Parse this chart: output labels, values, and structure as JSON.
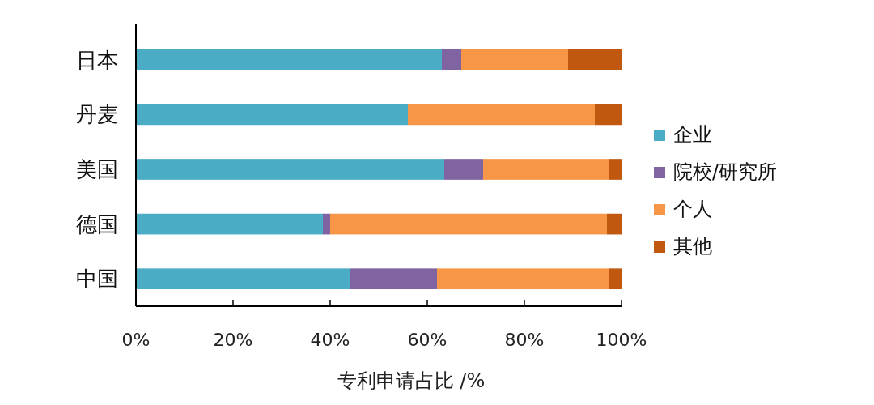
{
  "chart_data": {
    "type": "bar",
    "orientation": "horizontal",
    "stacked": true,
    "xlabel": "专利申请占比 /%",
    "categories": [
      "日本",
      "丹麦",
      "美国",
      "德国",
      "中国"
    ],
    "series": [
      {
        "name": "企业",
        "color": "#4bacc6",
        "values": [
          63,
          56,
          63.5,
          38.5,
          44
        ]
      },
      {
        "name": "院校/研究所",
        "color": "#8064a2",
        "values": [
          4,
          0,
          8,
          1.5,
          18
        ]
      },
      {
        "name": "个人",
        "color": "#f79646",
        "values": [
          22,
          38.5,
          26,
          57,
          35.5
        ]
      },
      {
        "name": "其他",
        "color": "#c0580f",
        "values": [
          11,
          5.5,
          2.5,
          3,
          2.5
        ]
      }
    ],
    "xlim": [
      0,
      100
    ],
    "xticks": [
      {
        "value": 0,
        "label": "0%"
      },
      {
        "value": 20,
        "label": "20%"
      },
      {
        "value": 40,
        "label": "40%"
      },
      {
        "value": 60,
        "label": "60%"
      },
      {
        "value": 80,
        "label": "80%"
      },
      {
        "value": 100,
        "label": "100%"
      }
    ],
    "legend": "right"
  }
}
